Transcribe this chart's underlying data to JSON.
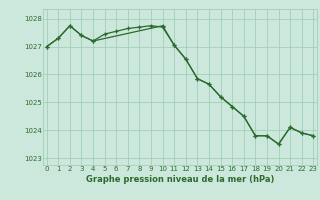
{
  "line1_x": [
    0,
    1,
    2,
    3,
    4,
    5,
    6,
    7,
    8,
    9,
    10,
    11,
    12,
    13,
    14,
    15,
    16,
    17,
    18,
    19,
    20,
    21,
    22,
    23
  ],
  "line1_y": [
    1027.0,
    1027.3,
    1027.75,
    1027.4,
    1027.2,
    1027.45,
    1027.55,
    1027.65,
    1027.7,
    1027.75,
    1027.7,
    1027.05,
    1026.55,
    1025.85,
    1025.65,
    1025.2,
    1024.85,
    1024.5,
    1023.8,
    1023.8,
    1023.5,
    1024.1,
    1023.9,
    1023.8
  ],
  "line2_x": [
    0,
    1,
    2,
    3,
    4,
    10,
    11,
    12,
    13,
    14,
    15,
    16,
    17,
    18,
    19,
    20,
    21,
    22,
    23
  ],
  "line2_y": [
    1027.0,
    1027.3,
    1027.75,
    1027.4,
    1027.2,
    1027.75,
    1027.05,
    1026.55,
    1025.85,
    1025.65,
    1025.2,
    1024.85,
    1024.5,
    1023.8,
    1023.8,
    1023.5,
    1024.1,
    1023.9,
    1023.8
  ],
  "line_color": "#2d6a2d",
  "bg_color": "#cce8dc",
  "grid_color": "#99ccb3",
  "text_color": "#2d6a2d",
  "xlabel": "Graphe pression niveau de la mer (hPa)",
  "ylim_min": 1022.75,
  "ylim_max": 1028.35,
  "xlim_min": -0.3,
  "xlim_max": 23.3,
  "yticks": [
    1023,
    1024,
    1025,
    1026,
    1027,
    1028
  ],
  "xticks": [
    0,
    1,
    2,
    3,
    4,
    5,
    6,
    7,
    8,
    9,
    10,
    11,
    12,
    13,
    14,
    15,
    16,
    17,
    18,
    19,
    20,
    21,
    22,
    23
  ]
}
